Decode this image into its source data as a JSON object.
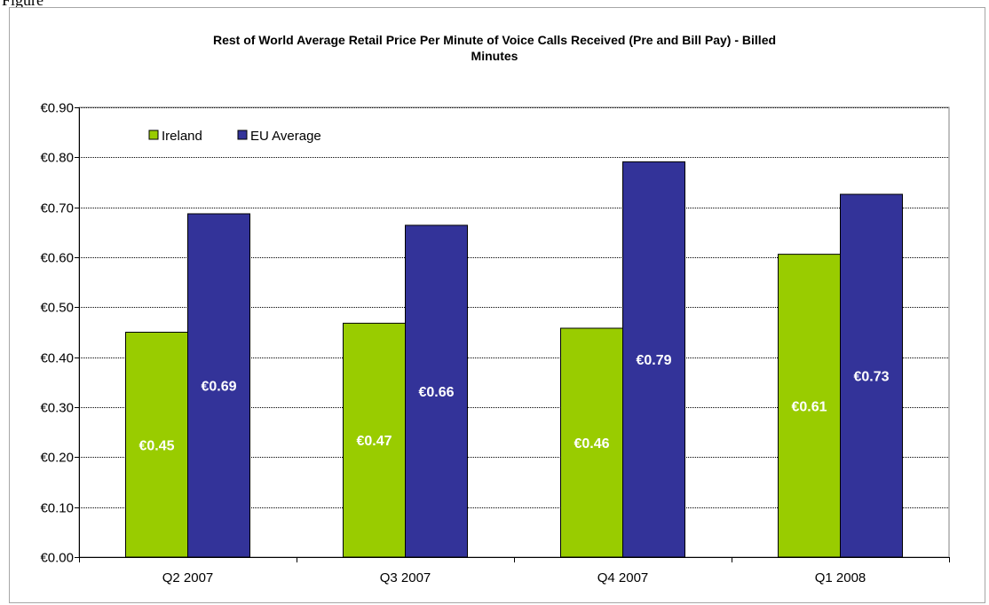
{
  "figure_label": "Figure",
  "chart_data": {
    "type": "bar",
    "title_line1": "Rest of World Average Retail Price Per Minute of Voice Calls Received (Pre and Bill Pay) - Billed",
    "title_line2": "Minutes",
    "categories": [
      "Q2 2007",
      "Q3 2007",
      "Q4 2007",
      "Q1 2008"
    ],
    "series": [
      {
        "name": "Ireland",
        "color": "#99cc00",
        "values": [
          0.45,
          0.468,
          0.458,
          0.606
        ],
        "labels": [
          "€0.45",
          "€0.47",
          "€0.46",
          "€0.61"
        ]
      },
      {
        "name": "EU Average",
        "color": "#333399",
        "values": [
          0.687,
          0.664,
          0.791,
          0.726
        ],
        "labels": [
          "€0.69",
          "€0.66",
          "€0.79",
          "€0.73"
        ]
      }
    ],
    "ylim": [
      0,
      0.9
    ],
    "yticks": [
      0.0,
      0.1,
      0.2,
      0.3,
      0.4,
      0.5,
      0.6,
      0.7,
      0.8,
      0.9
    ],
    "ytick_labels": [
      "€0.00",
      "€0.10",
      "€0.20",
      "€0.30",
      "€0.40",
      "€0.50",
      "€0.60",
      "€0.70",
      "€0.80",
      "€0.90"
    ],
    "grid": true,
    "legend_position": "top-left"
  }
}
